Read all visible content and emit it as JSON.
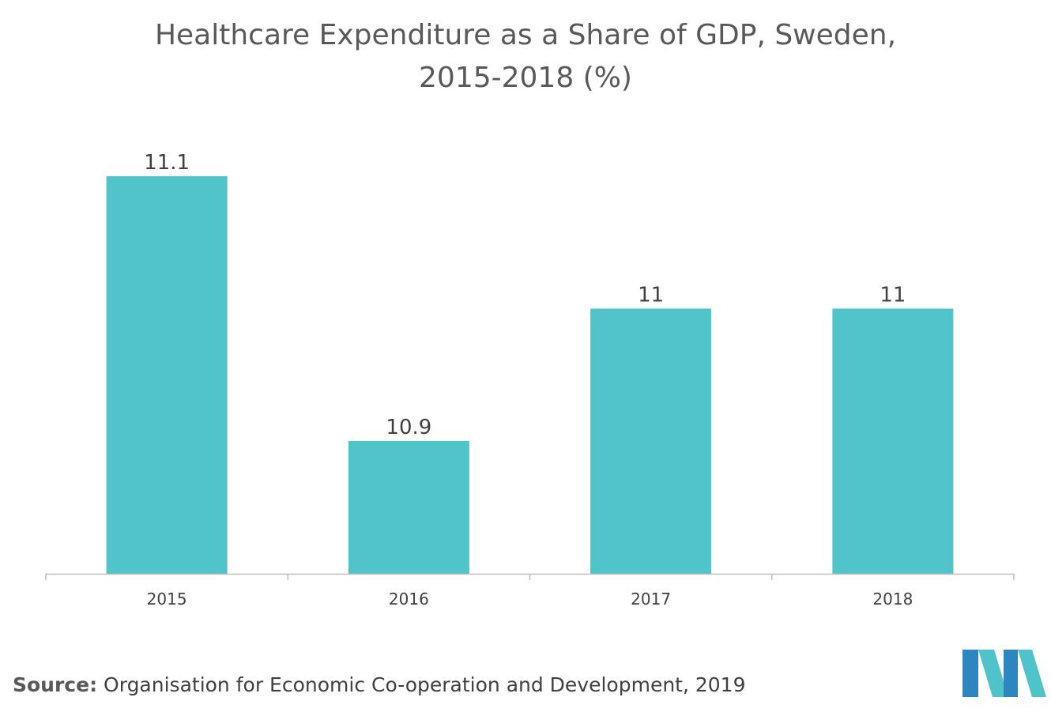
{
  "title_line1": "Healthcare Expenditure as a Share of GDP, Sweden,",
  "title_line2": "2015-2018 (%)",
  "source_label": "Source:",
  "source_text": "Organisation for Economic Co-operation and Development, 2019",
  "colors": {
    "bar": "#50C4C9",
    "axis": "#BFBFBF",
    "text": "#404040",
    "logo_blue": "#2E86C1",
    "logo_teal": "#4FC3C9"
  },
  "chart_data": {
    "type": "bar",
    "categories": [
      "2015",
      "2016",
      "2017",
      "2018"
    ],
    "values": [
      11.1,
      10.9,
      11,
      11
    ],
    "labels": [
      "11.1",
      "10.9",
      "11",
      "11"
    ],
    "title": "Healthcare Expenditure as a Share of GDP, Sweden, 2015-2018 (%)",
    "xlabel": "",
    "ylabel": "",
    "ylim": [
      10.7,
      11.1
    ],
    "grid": false,
    "legend": "none"
  }
}
